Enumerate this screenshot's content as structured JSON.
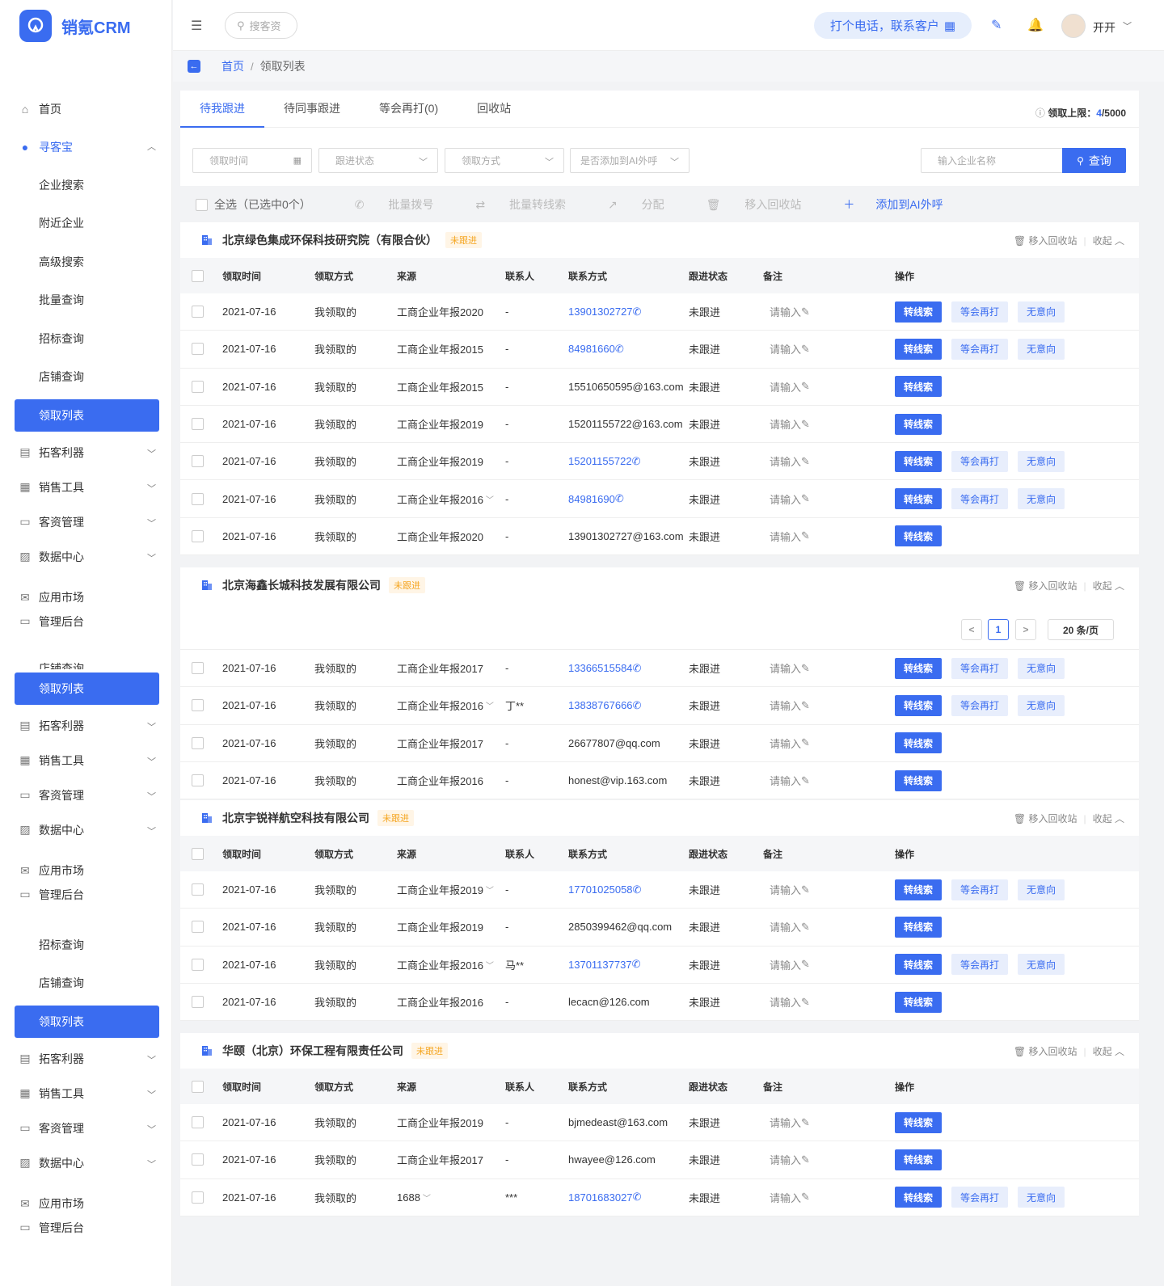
{
  "app": {
    "name": "销氪CRM"
  },
  "search": {
    "placeholder": "搜客资"
  },
  "topbar": {
    "call_button": "打个电话，联系客户",
    "user_name": "开开"
  },
  "breadcrumb": {
    "home": "首页",
    "sep": "/",
    "current": "领取列表"
  },
  "sidebar": {
    "home": "首页",
    "xunkebao": "寻客宝",
    "subs": [
      "企业搜索",
      "附近企业",
      "高级搜索",
      "批量查询",
      "招标查询",
      "店铺查询"
    ],
    "active": "领取列表",
    "groups": [
      "拓客利器",
      "销售工具",
      "客资管理",
      "数据中心"
    ],
    "market": "应用市场",
    "admin": "管理后台",
    "ghost_sub": "店铺查询"
  },
  "tabs": [
    "待我跟进",
    "待同事跟进",
    "等会再打(0)",
    "回收站"
  ],
  "quota": {
    "label": "领取上限：",
    "used": "4",
    "total": "/5000"
  },
  "filters": {
    "time": "领取时间",
    "status": "跟进状态",
    "method": "领取方式",
    "ai": "是否添加到AI外呼",
    "company_placeholder": "输入企业名称",
    "query": "查询"
  },
  "bulk": {
    "select_all": "全选（已选中0个）",
    "dial": "批量拨号",
    "transfer": "批量转线索",
    "assign": "分配",
    "recycle": "移入回收站",
    "add_ai": "添加到AI外呼"
  },
  "columns": [
    "领取时间",
    "领取方式",
    "来源",
    "联系人",
    "联系方式",
    "跟进状态",
    "备注",
    "操作"
  ],
  "card_actions": {
    "recycle": "移入回收站",
    "collapse": "收起"
  },
  "row_actions": {
    "to_lead": "转线索",
    "call_later": "等会再打",
    "no_intent": "无意向"
  },
  "remark_placeholder": "请输入",
  "badge": "未跟进",
  "pagination": {
    "page": "1",
    "size": "20 条/页"
  },
  "cards": [
    {
      "name": "北京绿色集成环保科技研究院（有限合伙）",
      "rows": [
        {
          "date": "2021-07-16",
          "method": "我领取的",
          "source": "工商企业年报2020",
          "contact": "-",
          "phone": "13901302727",
          "is_phone": true,
          "status": "未跟进",
          "more": false
        },
        {
          "date": "2021-07-16",
          "method": "我领取的",
          "source": "工商企业年报2015",
          "contact": "-",
          "phone": "84981660",
          "is_phone": true,
          "status": "未跟进",
          "more": false
        },
        {
          "date": "2021-07-16",
          "method": "我领取的",
          "source": "工商企业年报2015",
          "contact": "-",
          "phone": "15510650595@163.com",
          "is_phone": false,
          "status": "未跟进",
          "more": false
        },
        {
          "date": "2021-07-16",
          "method": "我领取的",
          "source": "工商企业年报2019",
          "contact": "-",
          "phone": "15201155722@163.com",
          "is_phone": false,
          "status": "未跟进",
          "more": false
        },
        {
          "date": "2021-07-16",
          "method": "我领取的",
          "source": "工商企业年报2019",
          "contact": "-",
          "phone": "15201155722",
          "is_phone": true,
          "status": "未跟进",
          "more": false
        },
        {
          "date": "2021-07-16",
          "method": "我领取的",
          "source": "工商企业年报2016",
          "contact": "-",
          "phone": "84981690",
          "is_phone": true,
          "status": "未跟进",
          "more": true
        },
        {
          "date": "2021-07-16",
          "method": "我领取的",
          "source": "工商企业年报2020",
          "contact": "-",
          "phone": "13901302727@163.com",
          "is_phone": false,
          "status": "未跟进",
          "more": false
        }
      ]
    },
    {
      "name": "北京海鑫长城科技发展有限公司",
      "rows": [
        {
          "date": "2021-07-16",
          "method": "我领取的",
          "source": "工商企业年报2017",
          "contact": "-",
          "phone": "13366515584",
          "is_phone": true,
          "status": "未跟进",
          "more": false
        },
        {
          "date": "2021-07-16",
          "method": "我领取的",
          "source": "工商企业年报2016",
          "contact": "丁**",
          "phone": "13838767666",
          "is_phone": true,
          "status": "未跟进",
          "more": true
        },
        {
          "date": "2021-07-16",
          "method": "我领取的",
          "source": "工商企业年报2017",
          "contact": "-",
          "phone": "26677807@qq.com",
          "is_phone": false,
          "status": "未跟进",
          "more": false
        },
        {
          "date": "2021-07-16",
          "method": "我领取的",
          "source": "工商企业年报2016",
          "contact": "-",
          "phone": "honest@vip.163.com",
          "is_phone": false,
          "status": "未跟进",
          "more": false
        }
      ]
    },
    {
      "name": "北京宇锐祥航空科技有限公司",
      "rows": [
        {
          "date": "2021-07-16",
          "method": "我领取的",
          "source": "工商企业年报2019",
          "contact": "-",
          "phone": "17701025058",
          "is_phone": true,
          "status": "未跟进",
          "more": true
        },
        {
          "date": "2021-07-16",
          "method": "我领取的",
          "source": "工商企业年报2019",
          "contact": "-",
          "phone": "2850399462@qq.com",
          "is_phone": false,
          "status": "未跟进",
          "more": false
        },
        {
          "date": "2021-07-16",
          "method": "我领取的",
          "source": "工商企业年报2016",
          "contact": "马**",
          "phone": "13701137737",
          "is_phone": true,
          "status": "未跟进",
          "more": true
        },
        {
          "date": "2021-07-16",
          "method": "我领取的",
          "source": "工商企业年报2016",
          "contact": "-",
          "phone": "lecacn@126.com",
          "is_phone": false,
          "status": "未跟进",
          "more": false
        }
      ]
    },
    {
      "name": "华颐（北京）环保工程有限责任公司",
      "rows": [
        {
          "date": "2021-07-16",
          "method": "我领取的",
          "source": "工商企业年报2019",
          "contact": "-",
          "phone": "bjmedeast@163.com",
          "is_phone": false,
          "status": "未跟进",
          "more": false
        },
        {
          "date": "2021-07-16",
          "method": "我领取的",
          "source": "工商企业年报2017",
          "contact": "-",
          "phone": "hwayee@126.com",
          "is_phone": false,
          "status": "未跟进",
          "more": false
        },
        {
          "date": "2021-07-16",
          "method": "我领取的",
          "source": "1688",
          "contact": "***",
          "phone": "18701683027",
          "is_phone": true,
          "status": "未跟进",
          "more": true
        }
      ]
    }
  ]
}
